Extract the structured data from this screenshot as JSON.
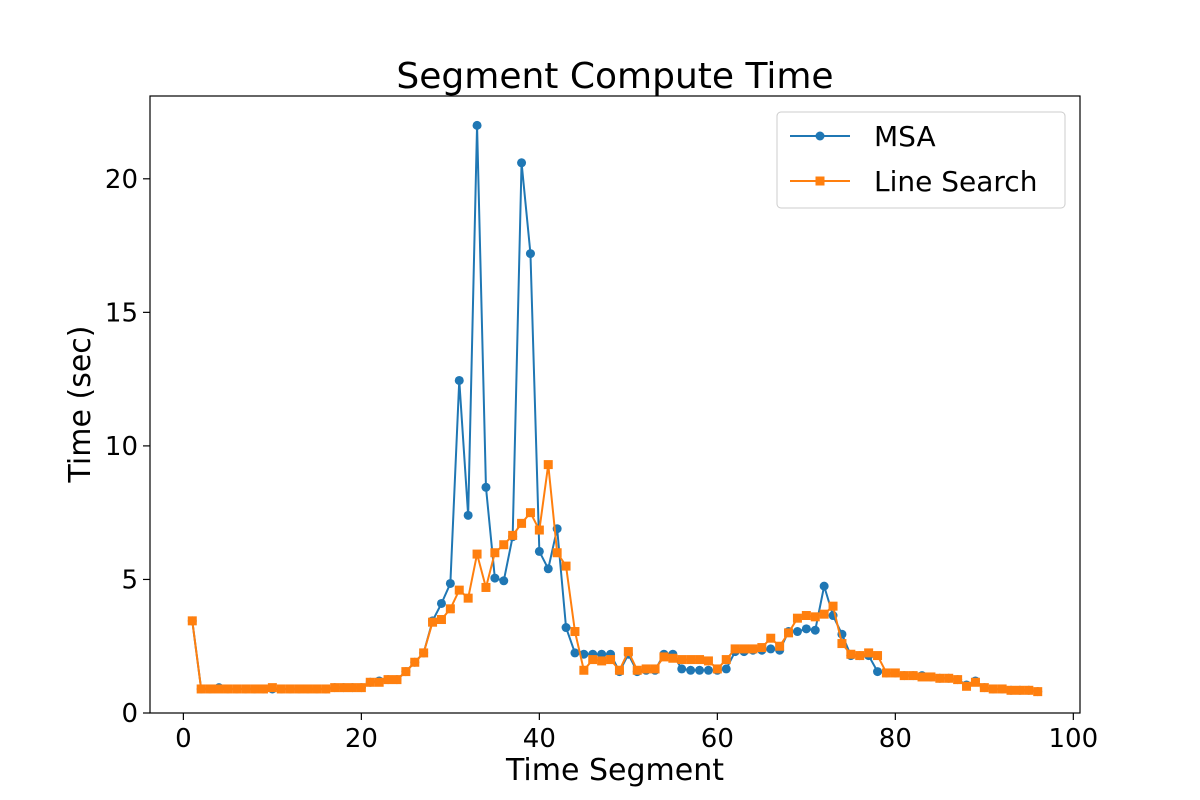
{
  "chart_data": {
    "type": "line",
    "title": "Segment Compute Time",
    "xlabel": "Time Segment",
    "ylabel": "Time (sec)",
    "xlim": [
      -3.75,
      100.75
    ],
    "ylim": [
      0,
      23.1
    ],
    "xticks": [
      0,
      20,
      40,
      60,
      80,
      100
    ],
    "yticks": [
      0,
      5,
      10,
      15,
      20
    ],
    "grid": false,
    "legend": "top-right",
    "x": [
      1,
      2,
      3,
      4,
      5,
      6,
      7,
      8,
      9,
      10,
      11,
      12,
      13,
      14,
      15,
      16,
      17,
      18,
      19,
      20,
      21,
      22,
      23,
      24,
      25,
      26,
      27,
      28,
      29,
      30,
      31,
      32,
      33,
      34,
      35,
      36,
      37,
      38,
      39,
      40,
      41,
      42,
      43,
      44,
      45,
      46,
      47,
      48,
      49,
      50,
      51,
      52,
      53,
      54,
      55,
      56,
      57,
      58,
      59,
      60,
      61,
      62,
      63,
      64,
      65,
      66,
      67,
      68,
      69,
      70,
      71,
      72,
      73,
      74,
      75,
      76,
      77,
      78,
      79,
      80,
      81,
      82,
      83,
      84,
      85,
      86,
      87,
      88,
      89,
      90,
      91,
      92,
      93,
      94,
      95,
      96
    ],
    "series": [
      {
        "name": "MSA",
        "color": "#1f77b4",
        "marker": "circle",
        "values": [
          3.45,
          0.9,
          0.9,
          0.95,
          0.9,
          0.9,
          0.9,
          0.9,
          0.9,
          0.9,
          0.9,
          0.9,
          0.9,
          0.9,
          0.9,
          0.9,
          0.95,
          0.95,
          0.95,
          0.95,
          1.15,
          1.2,
          1.25,
          1.25,
          1.55,
          1.9,
          2.25,
          3.45,
          4.1,
          4.85,
          12.45,
          7.4,
          22.0,
          8.45,
          5.05,
          4.95,
          6.6,
          20.6,
          17.2,
          6.05,
          5.4,
          6.9,
          3.2,
          2.25,
          2.2,
          2.2,
          2.2,
          2.2,
          1.55,
          2.2,
          1.55,
          1.6,
          1.6,
          2.2,
          2.2,
          1.65,
          1.6,
          1.6,
          1.6,
          1.6,
          1.65,
          2.3,
          2.3,
          2.35,
          2.35,
          2.4,
          2.35,
          3.05,
          3.05,
          3.15,
          3.1,
          4.75,
          3.65,
          2.95,
          2.15,
          2.15,
          2.15,
          1.55,
          1.5,
          1.5,
          1.4,
          1.4,
          1.4,
          1.35,
          1.3,
          1.3,
          1.25,
          1.05,
          1.2,
          0.95,
          0.9,
          0.9,
          0.85,
          0.85,
          0.85,
          0.8
        ]
      },
      {
        "name": "Line Search",
        "color": "#ff7f0e",
        "marker": "square",
        "values": [
          3.45,
          0.9,
          0.9,
          0.9,
          0.9,
          0.9,
          0.9,
          0.9,
          0.9,
          0.95,
          0.9,
          0.9,
          0.9,
          0.9,
          0.9,
          0.9,
          0.95,
          0.95,
          0.95,
          0.95,
          1.15,
          1.15,
          1.25,
          1.25,
          1.55,
          1.9,
          2.25,
          3.4,
          3.5,
          3.9,
          4.6,
          4.3,
          5.95,
          4.7,
          6.0,
          6.3,
          6.65,
          7.1,
          7.5,
          6.85,
          9.3,
          6.0,
          5.5,
          3.05,
          1.6,
          2.0,
          1.95,
          2.0,
          1.6,
          2.3,
          1.6,
          1.65,
          1.65,
          2.1,
          2.05,
          2.0,
          2.0,
          2.0,
          1.95,
          1.65,
          2.0,
          2.4,
          2.4,
          2.4,
          2.45,
          2.8,
          2.5,
          3.0,
          3.55,
          3.65,
          3.6,
          3.7,
          4.0,
          2.6,
          2.2,
          2.15,
          2.25,
          2.15,
          1.5,
          1.5,
          1.4,
          1.4,
          1.35,
          1.35,
          1.3,
          1.3,
          1.25,
          1.0,
          1.15,
          0.95,
          0.9,
          0.9,
          0.85,
          0.85,
          0.85,
          0.8
        ]
      }
    ]
  }
}
